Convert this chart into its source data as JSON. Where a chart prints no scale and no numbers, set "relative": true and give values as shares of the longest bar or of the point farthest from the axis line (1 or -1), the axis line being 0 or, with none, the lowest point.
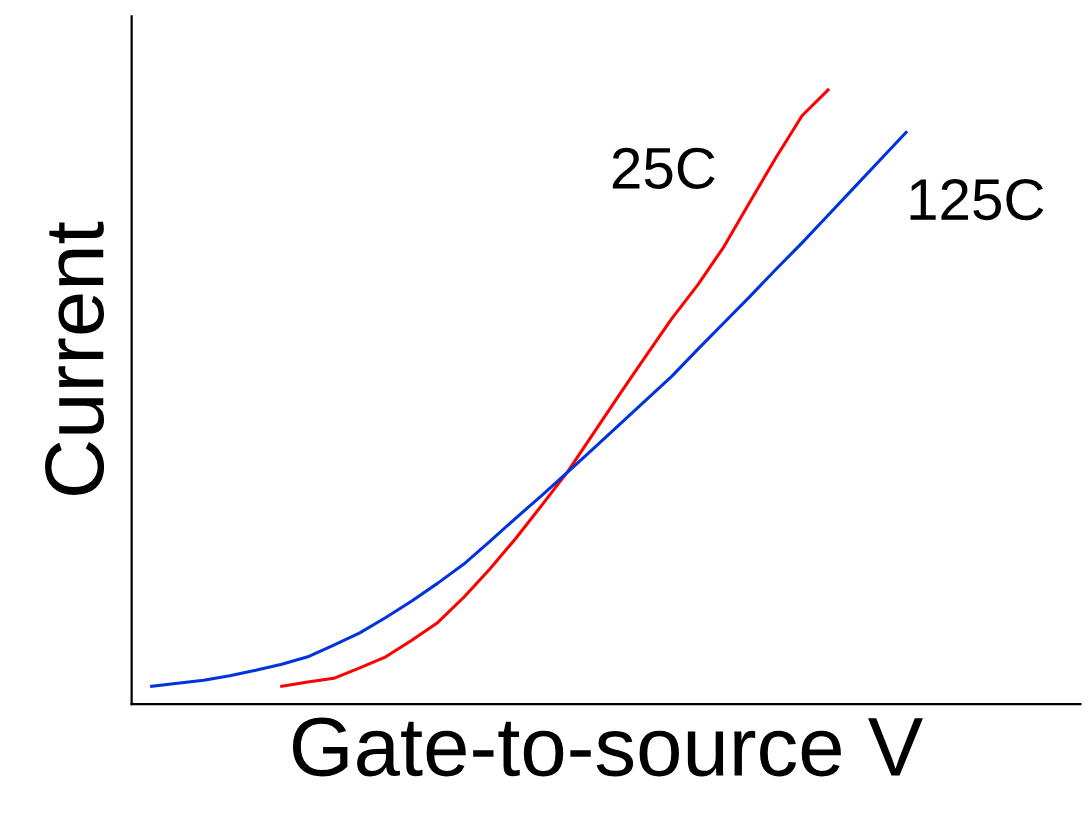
{
  "chart_data": {
    "type": "line",
    "relative": true,
    "xlabel": "Gate-to-source V",
    "ylabel": "Current",
    "categories": [
      null,
      null,
      null,
      null,
      null,
      null,
      null,
      null,
      null,
      null,
      null,
      null,
      null,
      null,
      null,
      null,
      null,
      null,
      null,
      null,
      null,
      null,
      null,
      null,
      null,
      null,
      null,
      null,
      null,
      null
    ],
    "series": [
      {
        "name": "25C",
        "color": "#ff0000",
        "values": [
          null,
          null,
          null,
          null,
          null,
          0.029,
          0.036,
          0.042,
          0.059,
          0.077,
          0.104,
          0.133,
          0.174,
          0.22,
          0.27,
          0.324,
          0.379,
          0.442,
          0.505,
          0.567,
          0.628,
          0.683,
          0.745,
          0.818,
          0.89,
          0.958,
          1.0,
          null,
          null,
          null
        ]
      },
      {
        "name": "125C",
        "color": "#0033dd",
        "values": [
          0.029,
          0.034,
          0.039,
          0.046,
          0.055,
          0.065,
          0.077,
          0.096,
          0.116,
          0.141,
          0.168,
          0.197,
          0.228,
          0.265,
          0.303,
          0.34,
          0.378,
          0.417,
          0.456,
          0.495,
          0.534,
          0.578,
          0.621,
          0.664,
          0.708,
          0.751,
          0.796,
          0.841,
          0.886,
          0.931
        ]
      }
    ],
    "legend": false,
    "marker": "none",
    "line_style": "solid"
  }
}
